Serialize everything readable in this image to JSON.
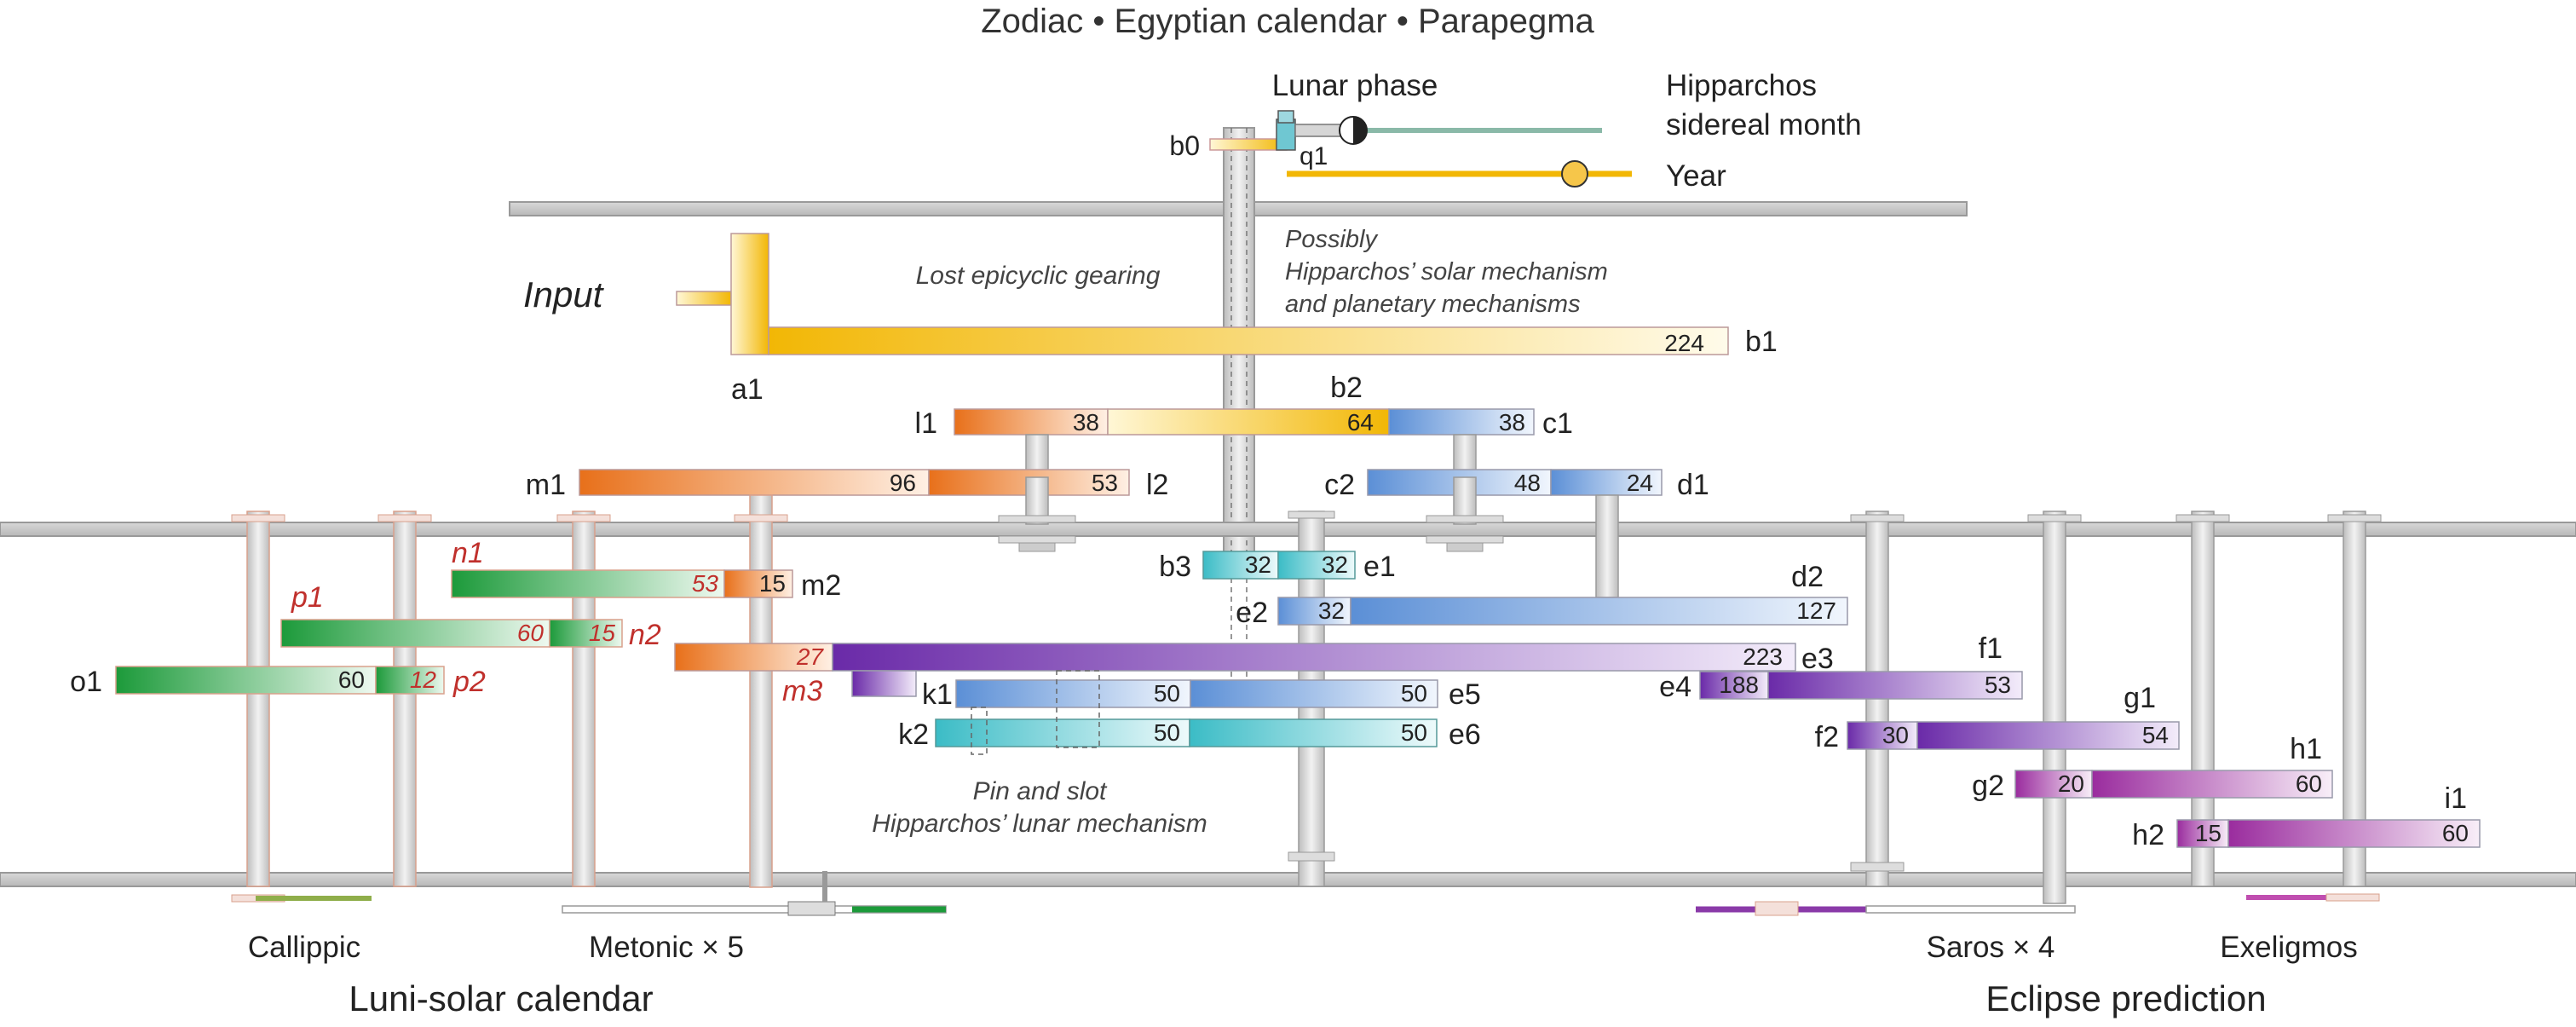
{
  "title": {
    "line": "Zodiac  •  Egyptian calendar  •  Parapegma"
  },
  "annotations": {
    "lunar_phase": "Lunar phase",
    "hipparchos_1": "Hipparchos",
    "hipparchos_2": "sidereal month",
    "year": "Year",
    "input": "Input",
    "lost_epicyclic": "Lost epicyclic gearing",
    "possibly_1": "Possibly",
    "possibly_2": "Hipparchos’ solar mechanism",
    "possibly_3": "and planetary mechanisms",
    "pin_slot_1": "Pin and slot",
    "pin_slot_2": "Hipparchos’ lunar mechanism"
  },
  "gears": {
    "b1": {
      "label": "b1",
      "teeth": "224"
    },
    "l1": {
      "label": "l1",
      "teeth": "38"
    },
    "b2": {
      "label": "b2",
      "teeth": "64"
    },
    "c1": {
      "label": "c1",
      "teeth": "38"
    },
    "m1": {
      "label": "m1",
      "teeth": "96"
    },
    "l2": {
      "label": "l2",
      "teeth": "53"
    },
    "c2": {
      "label": "c2",
      "teeth": "48"
    },
    "d1": {
      "label": "d1",
      "teeth": "24"
    },
    "n1": {
      "label": "n1",
      "teeth": "53"
    },
    "m2": {
      "label": "m2",
      "teeth": "15"
    },
    "p1": {
      "label": "p1",
      "teeth": "60"
    },
    "n2": {
      "label": "n2",
      "teeth": "15"
    },
    "o1": {
      "label": "o1",
      "teeth": "60"
    },
    "p2": {
      "label": "p2",
      "teeth": "12"
    },
    "m3": {
      "label": "m3",
      "teeth": "27"
    },
    "b3": {
      "label": "b3",
      "teeth": "32"
    },
    "e1": {
      "label": "e1",
      "teeth": "32"
    },
    "e2": {
      "label": "e2",
      "teeth": "32"
    },
    "d2": {
      "label": "d2",
      "teeth": "127"
    },
    "e3": {
      "label": "e3",
      "teeth": "223"
    },
    "e4": {
      "label": "e4",
      "teeth": "188"
    },
    "f1": {
      "label": "f1",
      "teeth": "53"
    },
    "k1": {
      "label": "k1",
      "teeth": "50"
    },
    "e5": {
      "label": "e5",
      "teeth": "50"
    },
    "k2": {
      "label": "k2",
      "teeth": "50"
    },
    "e6": {
      "label": "e6",
      "teeth": "50"
    },
    "f2": {
      "label": "f2",
      "teeth": "30"
    },
    "g1": {
      "label": "g1",
      "teeth": "54"
    },
    "g2": {
      "label": "g2",
      "teeth": "20"
    },
    "h1": {
      "label": "h1",
      "teeth": "60"
    },
    "h2": {
      "label": "h2",
      "teeth": "15"
    },
    "i1": {
      "label": "i1",
      "teeth": "60"
    }
  },
  "misc_labels": {
    "b0": "b0",
    "q1": "q1",
    "a1": "a1"
  },
  "dials": {
    "callippic": "Callippic",
    "metonic": "Metonic × 5",
    "saros": "Saros × 4",
    "exeligmos": "Exeligmos"
  },
  "sections": {
    "luni_solar": "Luni-solar calendar",
    "eclipse": "Eclipse prediction"
  },
  "colors": {
    "yellow": "#f2b705",
    "orange": "#e8701a",
    "blue": "#5b8fd6",
    "cyan": "#3bbcc6",
    "purple": "#6a2aa8",
    "magenta": "#9a2c9e",
    "green": "#1c9a3a",
    "plate": "#c8c8c8",
    "red_text": "#c0302c"
  }
}
